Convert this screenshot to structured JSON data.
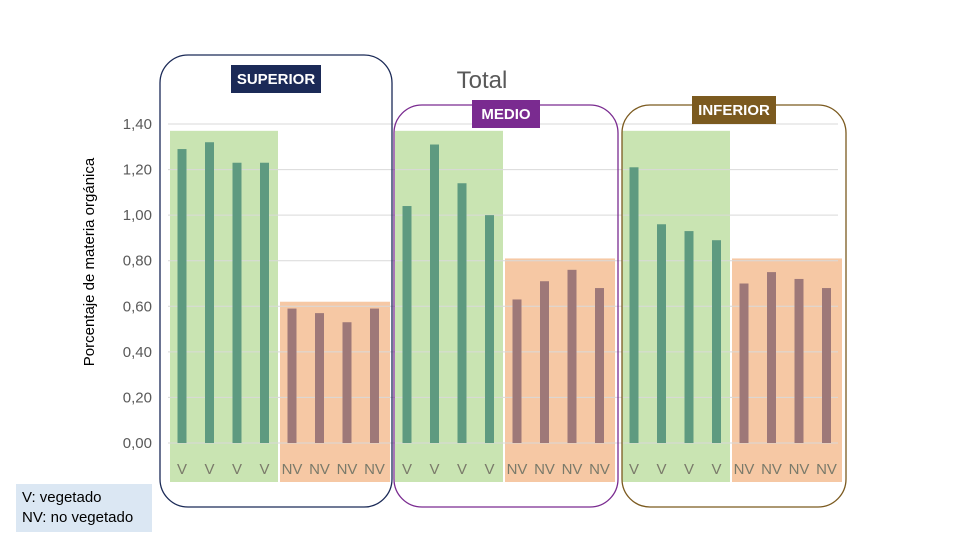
{
  "chart_data": {
    "type": "bar",
    "title": "Total",
    "ylabel": "Porcentaje de materia orgánica",
    "ylim": [
      0,
      1.4
    ],
    "yticks": [
      "0,00",
      "0,20",
      "0,40",
      "0,60",
      "0,80",
      "1,00",
      "1,20",
      "1,40"
    ],
    "grid": true,
    "categories": [
      "V",
      "V",
      "V",
      "V",
      "NV",
      "NV",
      "NV",
      "NV",
      "V",
      "V",
      "V",
      "V",
      "NV",
      "NV",
      "NV",
      "NV",
      "V",
      "V",
      "V",
      "V",
      "NV",
      "NV",
      "NV",
      "NV"
    ],
    "series": [
      {
        "values": [
          1.29,
          1.32,
          1.23,
          1.23,
          0.59,
          0.57,
          0.53,
          0.59,
          1.04,
          1.31,
          1.14,
          1.0,
          0.63,
          0.71,
          0.76,
          0.68,
          1.21,
          0.96,
          0.93,
          0.89,
          0.7,
          0.75,
          0.72,
          0.68
        ]
      }
    ],
    "bar_colors": {
      "V": "#5e9a80",
      "NV": "#9e7878"
    },
    "groups": [
      {
        "label": "SUPERIOR",
        "label_color": "#1b2a57",
        "border_color": "#1b2a57",
        "v_band_top": 1.37,
        "nv_band_top": 0.62
      },
      {
        "label": "MEDIO",
        "label_color": "#7a2b90",
        "border_color": "#7a2b90",
        "v_band_top": 1.37,
        "nv_band_top": 0.81
      },
      {
        "label": "INFERIOR",
        "label_color": "#7b5a1f",
        "border_color": "#7b5a1f",
        "v_band_top": 1.37,
        "nv_band_top": 0.81
      }
    ],
    "band_colors": {
      "V": "#c9e4b2",
      "NV": "#f6c8a4"
    }
  },
  "legend": {
    "lines": [
      "V: vegetado",
      "NV: no vegetado"
    ]
  }
}
